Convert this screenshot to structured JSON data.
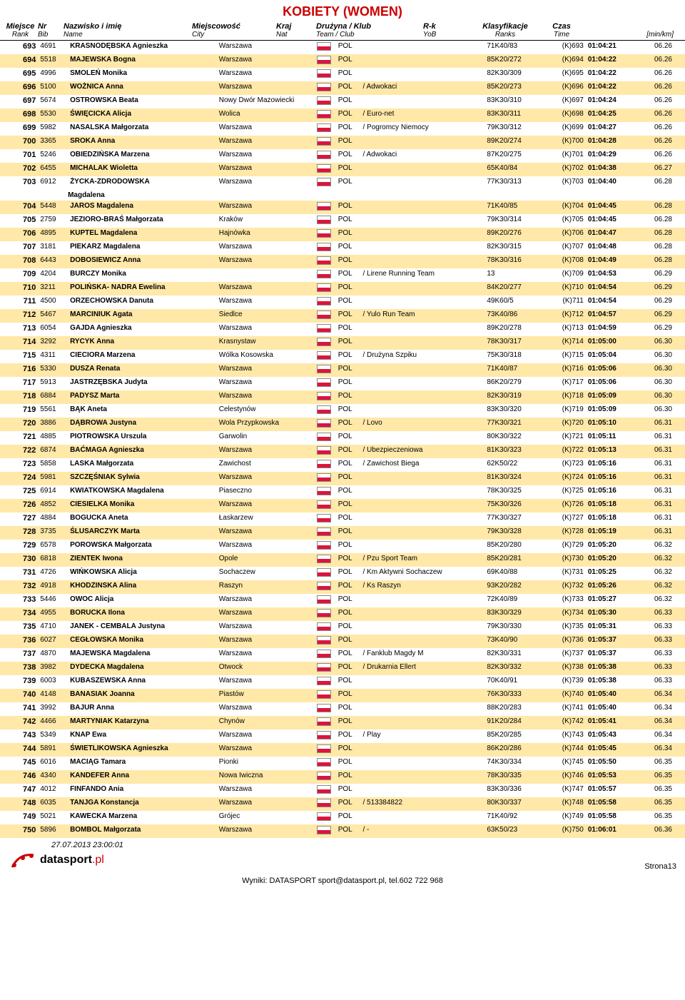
{
  "title": "KOBIETY (WOMEN)",
  "headers": {
    "rank": "Miejsce",
    "rank2": "Rank",
    "bib": "Nr",
    "bib2": "Bib",
    "name": "Nazwisko i imię",
    "name2": "Name",
    "city": "Miejscowość",
    "city2": "City",
    "nat": "Kraj",
    "nat2": "Nat",
    "team": "Drużyna / Klub",
    "team2": "Team  /  Club",
    "rk": "R-k",
    "rk2": "YoB",
    "ranks": "Klasyfikacje",
    "ranks2": "Ranks",
    "time": "Czas",
    "time2": "Time",
    "pace": "[min/km]"
  },
  "rows": [
    {
      "rank": 693,
      "bib": 4691,
      "name": "KRASNODĘBSKA Agnieszka",
      "city": "Warszawa",
      "nat": "POL",
      "team": "",
      "rk": "71K40/83",
      "ranks": "(K)693",
      "time": "01:04:21",
      "pace": "06.26"
    },
    {
      "rank": 694,
      "bib": 5518,
      "name": "MAJEWSKA Bogna",
      "city": "Warszawa",
      "nat": "POL",
      "team": "",
      "rk": "85K20/272",
      "ranks": "(K)694",
      "time": "01:04:22",
      "pace": "06.26"
    },
    {
      "rank": 695,
      "bib": 4996,
      "name": "SMOLEŃ Monika",
      "city": "Warszawa",
      "nat": "POL",
      "team": "",
      "rk": "82K30/309",
      "ranks": "(K)695",
      "time": "01:04:22",
      "pace": "06.26"
    },
    {
      "rank": 696,
      "bib": 5100,
      "name": "WOŻNICA Anna",
      "city": "Warszawa",
      "nat": "POL",
      "team": "/ Adwokaci",
      "rk": "85K20/273",
      "ranks": "(K)696",
      "time": "01:04:22",
      "pace": "06.26"
    },
    {
      "rank": 697,
      "bib": 5674,
      "name": "OSTROWSKA Beata",
      "city": "Nowy Dwór Mazowiecki",
      "nat": "POL",
      "team": "",
      "rk": "83K30/310",
      "ranks": "(K)697",
      "time": "01:04:24",
      "pace": "06.26"
    },
    {
      "rank": 698,
      "bib": 5530,
      "name": "ŚWIĘCICKA Alicja",
      "city": "Wolica",
      "nat": "POL",
      "team": "/ Euro-net",
      "rk": "83K30/311",
      "ranks": "(K)698",
      "time": "01:04:25",
      "pace": "06.26"
    },
    {
      "rank": 699,
      "bib": 5982,
      "name": "NASALSKA Małgorzata",
      "city": "Warszawa",
      "nat": "POL",
      "team": "/ Pogromcy Niemocy",
      "rk": "79K30/312",
      "ranks": "(K)699",
      "time": "01:04:27",
      "pace": "06.26"
    },
    {
      "rank": 700,
      "bib": 3365,
      "name": "SROKA Anna",
      "city": "Warszawa",
      "nat": "POL",
      "team": "",
      "rk": "89K20/274",
      "ranks": "(K)700",
      "time": "01:04:28",
      "pace": "06.26"
    },
    {
      "rank": 701,
      "bib": 5246,
      "name": "OBIEDZIŃSKA Marzena",
      "city": "Warszawa",
      "nat": "POL",
      "team": "/ Adwokaci",
      "rk": "87K20/275",
      "ranks": "(K)701",
      "time": "01:04:29",
      "pace": "06.26"
    },
    {
      "rank": 702,
      "bib": 6455,
      "name": "MICHALAK Wioletta",
      "city": "Warszawa",
      "nat": "POL",
      "team": "",
      "rk": "65K40/84",
      "ranks": "(K)702",
      "time": "01:04:38",
      "pace": "06.27"
    },
    {
      "rank": 703,
      "bib": 6912,
      "name": "ŻYCKA-ZDRODOWSKA",
      "name2": "Magdalena",
      "city": "Warszawa",
      "nat": "POL",
      "team": "",
      "rk": "77K30/313",
      "ranks": "(K)703",
      "time": "01:04:40",
      "pace": "06.28"
    },
    {
      "rank": 704,
      "bib": 5448,
      "name": "JAROS Magdalena",
      "city": "Warszawa",
      "nat": "POL",
      "team": "",
      "rk": "71K40/85",
      "ranks": "(K)704",
      "time": "01:04:45",
      "pace": "06.28"
    },
    {
      "rank": 705,
      "bib": 2759,
      "name": "JEZIORO-BRAŚ Małgorzata",
      "city": "Kraków",
      "nat": "POL",
      "team": "",
      "rk": "79K30/314",
      "ranks": "(K)705",
      "time": "01:04:45",
      "pace": "06.28"
    },
    {
      "rank": 706,
      "bib": 4895,
      "name": "KUPTEL Magdalena",
      "city": "Hajnówka",
      "nat": "POL",
      "team": "",
      "rk": "89K20/276",
      "ranks": "(K)706",
      "time": "01:04:47",
      "pace": "06.28"
    },
    {
      "rank": 707,
      "bib": 3181,
      "name": "PIEKARZ Magdalena",
      "city": "Warszawa",
      "nat": "POL",
      "team": "",
      "rk": "82K30/315",
      "ranks": "(K)707",
      "time": "01:04:48",
      "pace": "06.28"
    },
    {
      "rank": 708,
      "bib": 6443,
      "name": "DOBOSIEWICZ Anna",
      "city": "Warszawa",
      "nat": "POL",
      "team": "",
      "rk": "78K30/316",
      "ranks": "(K)708",
      "time": "01:04:49",
      "pace": "06.28"
    },
    {
      "rank": 709,
      "bib": 4204,
      "name": "BURCZY Monika",
      "city": "",
      "nat": "POL",
      "team": "/ Lirene Running Team",
      "rk": "13",
      "ranks": "(K)709",
      "time": "01:04:53",
      "pace": "06.29"
    },
    {
      "rank": 710,
      "bib": 3211,
      "name": "POLIŃSKA- NADRA Ewelina",
      "city": "Warszawa",
      "nat": "POL",
      "team": "",
      "rk": "84K20/277",
      "ranks": "(K)710",
      "time": "01:04:54",
      "pace": "06.29"
    },
    {
      "rank": 711,
      "bib": 4500,
      "name": "ORZECHOWSKA Danuta",
      "city": "Warszawa",
      "nat": "POL",
      "team": "",
      "rk": "49K60/5",
      "ranks": "(K)711",
      "time": "01:04:54",
      "pace": "06.29"
    },
    {
      "rank": 712,
      "bib": 5467,
      "name": "MARCINIUK Agata",
      "city": "Siedlce",
      "nat": "POL",
      "team": "/ Yulo Run Team",
      "rk": "73K40/86",
      "ranks": "(K)712",
      "time": "01:04:57",
      "pace": "06.29"
    },
    {
      "rank": 713,
      "bib": 6054,
      "name": "GAJDA Agnieszka",
      "city": "Warszawa",
      "nat": "POL",
      "team": "",
      "rk": "89K20/278",
      "ranks": "(K)713",
      "time": "01:04:59",
      "pace": "06.29"
    },
    {
      "rank": 714,
      "bib": 3292,
      "name": "RYCYK Anna",
      "city": "Krasnystaw",
      "nat": "POL",
      "team": "",
      "rk": "78K30/317",
      "ranks": "(K)714",
      "time": "01:05:00",
      "pace": "06.30"
    },
    {
      "rank": 715,
      "bib": 4311,
      "name": "CIECIORA Marzena",
      "city": "Wólka Kosowska",
      "nat": "POL",
      "team": "/ Drużyna Szpiku",
      "rk": "75K30/318",
      "ranks": "(K)715",
      "time": "01:05:04",
      "pace": "06.30"
    },
    {
      "rank": 716,
      "bib": 5330,
      "name": "DUSZA Renata",
      "city": "Warszawa",
      "nat": "POL",
      "team": "",
      "rk": "71K40/87",
      "ranks": "(K)716",
      "time": "01:05:06",
      "pace": "06.30"
    },
    {
      "rank": 717,
      "bib": 5913,
      "name": "JASTRZĘBSKA Judyta",
      "city": "Warszawa",
      "nat": "POL",
      "team": "",
      "rk": "86K20/279",
      "ranks": "(K)717",
      "time": "01:05:06",
      "pace": "06.30"
    },
    {
      "rank": 718,
      "bib": 6884,
      "name": "PADYSZ Marta",
      "city": "Warszawa",
      "nat": "POL",
      "team": "",
      "rk": "82K30/319",
      "ranks": "(K)718",
      "time": "01:05:09",
      "pace": "06.30"
    },
    {
      "rank": 719,
      "bib": 5561,
      "name": "BĄK Aneta",
      "city": "Celestynów",
      "nat": "POL",
      "team": "",
      "rk": "83K30/320",
      "ranks": "(K)719",
      "time": "01:05:09",
      "pace": "06.30"
    },
    {
      "rank": 720,
      "bib": 3886,
      "name": "DĄBROWA Justyna",
      "city": "Wola Przypkowska",
      "nat": "POL",
      "team": "/ Lovo",
      "rk": "77K30/321",
      "ranks": "(K)720",
      "time": "01:05:10",
      "pace": "06.31"
    },
    {
      "rank": 721,
      "bib": 4885,
      "name": "PIOTROWSKA Urszula",
      "city": "Garwolin",
      "nat": "POL",
      "team": "",
      "rk": "80K30/322",
      "ranks": "(K)721",
      "time": "01:05:11",
      "pace": "06.31"
    },
    {
      "rank": 722,
      "bib": 6874,
      "name": "BAĆMAGA Agnieszka",
      "city": "Warszawa",
      "nat": "POL",
      "team": "/ Ubezpieczeniowa",
      "rk": "81K30/323",
      "ranks": "(K)722",
      "time": "01:05:13",
      "pace": "06.31"
    },
    {
      "rank": 723,
      "bib": 5858,
      "name": "LASKA Małgorzata",
      "city": "Zawichost",
      "nat": "POL",
      "team": "/ Zawichost Biega",
      "rk": "62K50/22",
      "ranks": "(K)723",
      "time": "01:05:16",
      "pace": "06.31"
    },
    {
      "rank": 724,
      "bib": 5981,
      "name": "SZCZĘŚNIAK Sylwia",
      "city": "Warszawa",
      "nat": "POL",
      "team": "",
      "rk": "81K30/324",
      "ranks": "(K)724",
      "time": "01:05:16",
      "pace": "06.31"
    },
    {
      "rank": 725,
      "bib": 6914,
      "name": "KWIATKOWSKA Magdalena",
      "city": "Piaseczno",
      "nat": "POL",
      "team": "",
      "rk": "78K30/325",
      "ranks": "(K)725",
      "time": "01:05:16",
      "pace": "06.31"
    },
    {
      "rank": 726,
      "bib": 4852,
      "name": "CIESIELKA Monika",
      "city": "Warszawa",
      "nat": "POL",
      "team": "",
      "rk": "75K30/326",
      "ranks": "(K)726",
      "time": "01:05:18",
      "pace": "06.31"
    },
    {
      "rank": 727,
      "bib": 4884,
      "name": "BOGUCKA Aneta",
      "city": "Łaskarzew",
      "nat": "POL",
      "team": "",
      "rk": "77K30/327",
      "ranks": "(K)727",
      "time": "01:05:18",
      "pace": "06.31"
    },
    {
      "rank": 728,
      "bib": 3735,
      "name": "ŚLUSARCZYK Marta",
      "city": "Warszawa",
      "nat": "POL",
      "team": "",
      "rk": "79K30/328",
      "ranks": "(K)728",
      "time": "01:05:19",
      "pace": "06.31"
    },
    {
      "rank": 729,
      "bib": 6578,
      "name": "POROWSKA Małgorzata",
      "city": "Warszawa",
      "nat": "POL",
      "team": "",
      "rk": "85K20/280",
      "ranks": "(K)729",
      "time": "01:05:20",
      "pace": "06.32"
    },
    {
      "rank": 730,
      "bib": 6818,
      "name": "ZIENTEK Iwona",
      "city": "Opole",
      "nat": "POL",
      "team": "/ Pzu Sport Team",
      "rk": "85K20/281",
      "ranks": "(K)730",
      "time": "01:05:20",
      "pace": "06.32"
    },
    {
      "rank": 731,
      "bib": 4726,
      "name": "WIŃKOWSKA Alicja",
      "city": "Sochaczew",
      "nat": "POL",
      "team": "/ Km Aktywni Sochaczew",
      "rk": "69K40/88",
      "ranks": "(K)731",
      "time": "01:05:25",
      "pace": "06.32"
    },
    {
      "rank": 732,
      "bib": 4918,
      "name": "KHODZINSKA Alina",
      "city": "Raszyn",
      "nat": "POL",
      "team": "/ Ks Raszyn",
      "rk": "93K20/282",
      "ranks": "(K)732",
      "time": "01:05:26",
      "pace": "06.32"
    },
    {
      "rank": 733,
      "bib": 5446,
      "name": "OWOC Alicja",
      "city": "Warszawa",
      "nat": "POL",
      "team": "",
      "rk": "72K40/89",
      "ranks": "(K)733",
      "time": "01:05:27",
      "pace": "06.32"
    },
    {
      "rank": 734,
      "bib": 4955,
      "name": "BORUCKA Ilona",
      "city": "Warszawa",
      "nat": "POL",
      "team": "",
      "rk": "83K30/329",
      "ranks": "(K)734",
      "time": "01:05:30",
      "pace": "06.33"
    },
    {
      "rank": 735,
      "bib": 4710,
      "name": "JANEK - CEMBALA Justyna",
      "city": "Warszawa",
      "nat": "POL",
      "team": "",
      "rk": "79K30/330",
      "ranks": "(K)735",
      "time": "01:05:31",
      "pace": "06.33"
    },
    {
      "rank": 736,
      "bib": 6027,
      "name": "CEGŁOWSKA Monika",
      "city": "Warszawa",
      "nat": "POL",
      "team": "",
      "rk": "73K40/90",
      "ranks": "(K)736",
      "time": "01:05:37",
      "pace": "06.33"
    },
    {
      "rank": 737,
      "bib": 4870,
      "name": "MAJEWSKA Magdalena",
      "city": "Warszawa",
      "nat": "POL",
      "team": "/ Fanklub Magdy M",
      "rk": "82K30/331",
      "ranks": "(K)737",
      "time": "01:05:37",
      "pace": "06.33"
    },
    {
      "rank": 738,
      "bib": 3982,
      "name": "DYDECKA Magdalena",
      "city": "Otwock",
      "nat": "POL",
      "team": "/ Drukarnia Ellert",
      "rk": "82K30/332",
      "ranks": "(K)738",
      "time": "01:05:38",
      "pace": "06.33"
    },
    {
      "rank": 739,
      "bib": 6003,
      "name": "KUBASZEWSKA Anna",
      "city": "Warszawa",
      "nat": "POL",
      "team": "",
      "rk": "70K40/91",
      "ranks": "(K)739",
      "time": "01:05:38",
      "pace": "06.33"
    },
    {
      "rank": 740,
      "bib": 4148,
      "name": "BANASIAK Joanna",
      "city": "Piastów",
      "nat": "POL",
      "team": "",
      "rk": "76K30/333",
      "ranks": "(K)740",
      "time": "01:05:40",
      "pace": "06.34"
    },
    {
      "rank": 741,
      "bib": 3992,
      "name": "BAJUR Anna",
      "city": "Warszawa",
      "nat": "POL",
      "team": "",
      "rk": "88K20/283",
      "ranks": "(K)741",
      "time": "01:05:40",
      "pace": "06.34"
    },
    {
      "rank": 742,
      "bib": 4466,
      "name": "MARTYNIAK Katarzyna",
      "city": "Chynów",
      "nat": "POL",
      "team": "",
      "rk": "91K20/284",
      "ranks": "(K)742",
      "time": "01:05:41",
      "pace": "06.34"
    },
    {
      "rank": 743,
      "bib": 5349,
      "name": "KNAP Ewa",
      "city": "Warszawa",
      "nat": "POL",
      "team": "/ Play",
      "rk": "85K20/285",
      "ranks": "(K)743",
      "time": "01:05:43",
      "pace": "06.34"
    },
    {
      "rank": 744,
      "bib": 5891,
      "name": "ŚWIETLIKOWSKA Agnieszka",
      "city": "Warszawa",
      "nat": "POL",
      "team": "",
      "rk": "86K20/286",
      "ranks": "(K)744",
      "time": "01:05:45",
      "pace": "06.34"
    },
    {
      "rank": 745,
      "bib": 6016,
      "name": "MACIĄG Tamara",
      "city": "Pionki",
      "nat": "POL",
      "team": "",
      "rk": "74K30/334",
      "ranks": "(K)745",
      "time": "01:05:50",
      "pace": "06.35"
    },
    {
      "rank": 746,
      "bib": 4340,
      "name": "KANDEFER Anna",
      "city": "Nowa Iwiczna",
      "nat": "POL",
      "team": "",
      "rk": "78K30/335",
      "ranks": "(K)746",
      "time": "01:05:53",
      "pace": "06.35"
    },
    {
      "rank": 747,
      "bib": 4012,
      "name": "FINFANDO Ania",
      "city": "Warszawa",
      "nat": "POL",
      "team": "",
      "rk": "83K30/336",
      "ranks": "(K)747",
      "time": "01:05:57",
      "pace": "06.35"
    },
    {
      "rank": 748,
      "bib": 6035,
      "name": "TANJGA Konstancja",
      "city": "Warszawa",
      "nat": "POL",
      "team": "/ 513384822",
      "rk": "80K30/337",
      "ranks": "(K)748",
      "time": "01:05:58",
      "pace": "06.35"
    },
    {
      "rank": 749,
      "bib": 5021,
      "name": "KAWECKA Marzena",
      "city": "Grójec",
      "nat": "POL",
      "team": "",
      "rk": "71K40/92",
      "ranks": "(K)749",
      "time": "01:05:58",
      "pace": "06.35"
    },
    {
      "rank": 750,
      "bib": 5896,
      "name": "BOMBOL Małgorzata",
      "city": "Warszawa",
      "nat": "POL",
      "team": "/ -",
      "rk": "63K50/23",
      "ranks": "(K)750",
      "time": "01:06:01",
      "pace": "06.36"
    }
  ],
  "footer": {
    "timestamp": "27.07.2013 23:00:01",
    "page": "Strona13",
    "credit": "Wyniki: DATASPORT sport@datasport.pl, tel.602 722 968",
    "logo_text": "datasport",
    "logo_suffix": ".pl"
  }
}
